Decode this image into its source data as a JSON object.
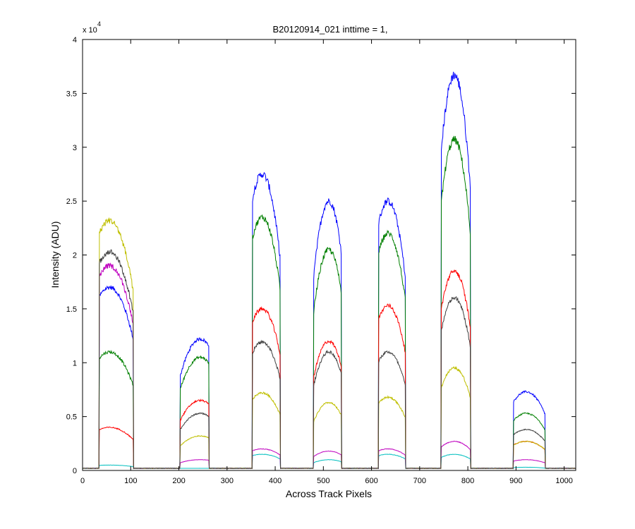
{
  "chart_data": {
    "type": "line",
    "title": "B20120914_021 inttime = 1,",
    "xlabel": "Across Track Pixels",
    "ylabel": "Intensity (ADU)",
    "y_multiplier_label": "x 10",
    "y_multiplier_exponent": "4",
    "xlim": [
      0,
      1024
    ],
    "ylim": [
      0,
      40000
    ],
    "x_ticks": [
      0,
      100,
      200,
      300,
      400,
      500,
      600,
      700,
      800,
      900,
      1000
    ],
    "x_tick_labels": [
      "0",
      "100",
      "200",
      "300",
      "400",
      "500",
      "600",
      "700",
      "800",
      "900",
      "1000"
    ],
    "y_ticks": [
      0,
      5000,
      10000,
      15000,
      20000,
      25000,
      30000,
      35000,
      40000
    ],
    "y_tick_labels": [
      "0",
      "0.5",
      "1",
      "1.5",
      "2",
      "2.5",
      "3",
      "3.5",
      "4"
    ],
    "grid": false,
    "legend": "none",
    "baseline": 200,
    "blocks": [
      {
        "x_start": 35,
        "x_end": 105,
        "peak_x": 0.3
      },
      {
        "x_start": 203,
        "x_end": 262,
        "peak_x": 0.7
      },
      {
        "x_start": 353,
        "x_end": 410,
        "peak_x": 0.35
      },
      {
        "x_start": 480,
        "x_end": 537,
        "peak_x": 0.55
      },
      {
        "x_start": 615,
        "x_end": 670,
        "peak_x": 0.35
      },
      {
        "x_start": 745,
        "x_end": 805,
        "peak_x": 0.45
      },
      {
        "x_start": 895,
        "x_end": 960,
        "peak_x": 0.4
      }
    ],
    "series": [
      {
        "color": "#0000ff",
        "values": [
          17000,
          12200,
          27500,
          25000,
          25000,
          36700,
          7300
        ]
      },
      {
        "color": "#007f00",
        "values": [
          11000,
          10500,
          23500,
          20500,
          22000,
          30700,
          5300
        ]
      },
      {
        "color": "#ff0000",
        "values": [
          4000,
          6500,
          15000,
          12000,
          15300,
          18500,
          2700
        ]
      },
      {
        "color": "#00bfbf",
        "values": [
          500,
          200,
          1500,
          1000,
          1500,
          1500,
          300
        ]
      },
      {
        "color": "#bf00bf",
        "values": [
          19000,
          1000,
          2000,
          1800,
          2000,
          2700,
          1000
        ]
      },
      {
        "color": "#bfbf00",
        "values": [
          23200,
          3200,
          7200,
          6300,
          6800,
          9500,
          2700
        ]
      },
      {
        "color": "#3f3f3f",
        "values": [
          20300,
          5300,
          11900,
          11000,
          11000,
          16000,
          3800
        ]
      }
    ]
  }
}
